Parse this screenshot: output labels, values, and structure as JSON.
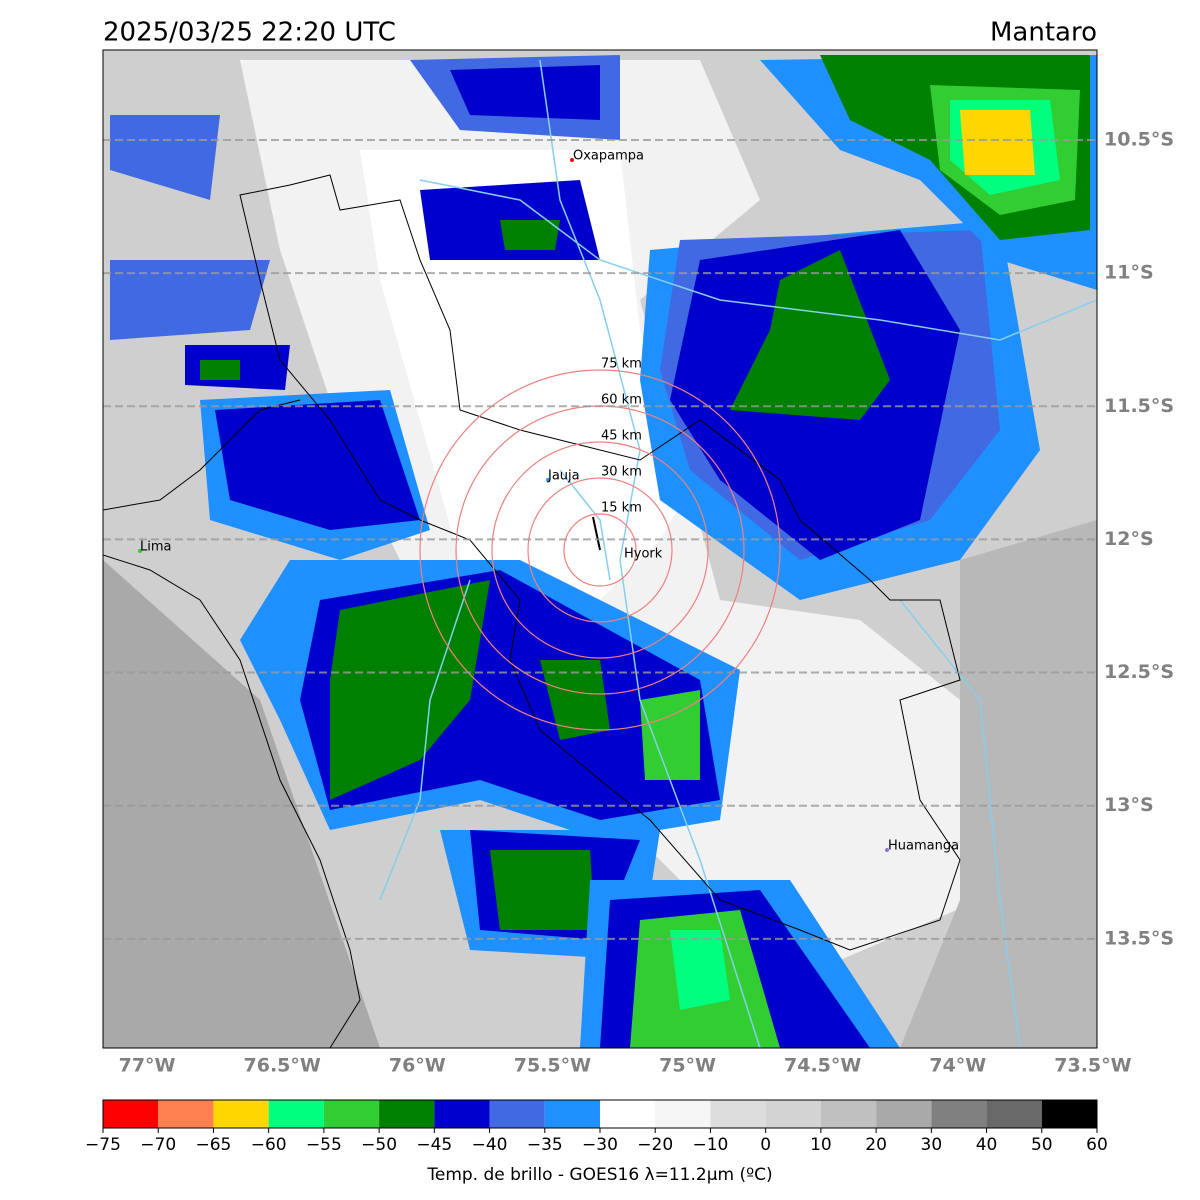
{
  "header": {
    "title": "2025/03/25 22:20 UTC",
    "region": "Mantaro"
  },
  "map": {
    "xlim": [
      -77.163,
      -73.485
    ],
    "ylim": [
      -13.91,
      -10.162
    ],
    "grid": true,
    "xticks": [
      {
        "value": -77,
        "label": "77°W"
      },
      {
        "value": -76.5,
        "label": "76.5°W"
      },
      {
        "value": -76,
        "label": "76°W"
      },
      {
        "value": -75.5,
        "label": "75.5°W"
      },
      {
        "value": -75,
        "label": "75°W"
      },
      {
        "value": -74.5,
        "label": "74.5°W"
      },
      {
        "value": -74,
        "label": "74°W"
      },
      {
        "value": -73.5,
        "label": "73.5°W"
      }
    ],
    "yticks": [
      {
        "value": -10.5,
        "label": "10.5°S"
      },
      {
        "value": -11,
        "label": "11°S"
      },
      {
        "value": -11.5,
        "label": "11.5°S"
      },
      {
        "value": -12,
        "label": "12°S"
      },
      {
        "value": -12.5,
        "label": "12.5°S"
      },
      {
        "value": -13,
        "label": "13°S"
      },
      {
        "value": -13.5,
        "label": "13.5°S"
      }
    ],
    "places": [
      "Oxapampa",
      "Jauja",
      "Hyork",
      "Lima",
      "Huamanga"
    ],
    "rings": [
      "15 km",
      "30 km",
      "45 km",
      "60 km",
      "75 km"
    ]
  },
  "colorbar": {
    "ticks": [
      {
        "value": -75,
        "label": "−75"
      },
      {
        "value": -70,
        "label": "−70"
      },
      {
        "value": -65,
        "label": "−65"
      },
      {
        "value": -60,
        "label": "−60"
      },
      {
        "value": -55,
        "label": "−55"
      },
      {
        "value": -50,
        "label": "−50"
      },
      {
        "value": -45,
        "label": "−45"
      },
      {
        "value": -40,
        "label": "−40"
      },
      {
        "value": -35,
        "label": "−35"
      },
      {
        "value": -30,
        "label": "−30"
      },
      {
        "value": -20,
        "label": "−20"
      },
      {
        "value": -10,
        "label": "−10"
      },
      0,
      10,
      20,
      30,
      40,
      50,
      60
    ],
    "colors": [
      "#ff0000",
      "#ff7f50",
      "#ffd700",
      "#00ff7f",
      "#32cd32",
      "#008000",
      "#0000cd",
      "#4169e1",
      "#1e90ff",
      "#ffffff",
      "#f5f5f5",
      "#dcdcdc",
      "#d3d3d3",
      "#c0c0c0",
      "#a9a9a9",
      "#808080",
      "#696969",
      "#000000"
    ],
    "label": "Temp. de brillo - GOES16 λ=11.2μm (ºC)"
  }
}
